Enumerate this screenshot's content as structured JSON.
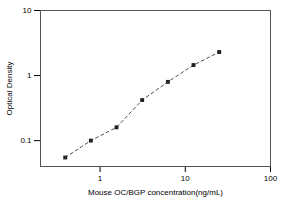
{
  "chart_data": {
    "type": "line",
    "x_label": "Mouse OC/BGP concentration(ng/mL)",
    "y_label": "Optical Density",
    "x": [
      0.39,
      0.78,
      1.56,
      3.12,
      6.25,
      12.5,
      25
    ],
    "values": [
      0.055,
      0.1,
      0.16,
      0.42,
      0.8,
      1.45,
      2.3
    ],
    "color": "#222222",
    "marker": "square",
    "line_style": "dashed",
    "log": true,
    "xlim": [
      0.2,
      100
    ],
    "xticks": [
      1,
      10,
      100
    ],
    "ylim": [
      0.04,
      10
    ],
    "yticks": [
      0.1,
      1,
      10
    ],
    "grid": false
  }
}
